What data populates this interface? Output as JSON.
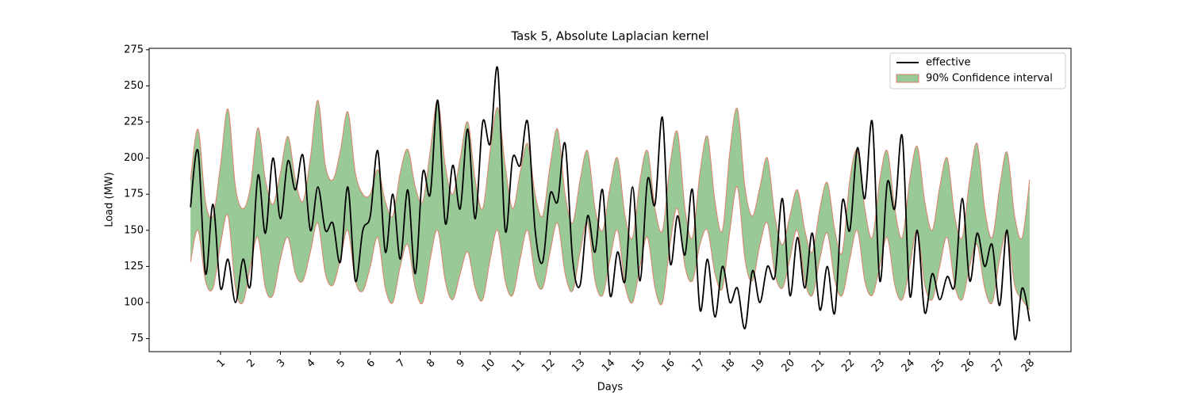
{
  "chart_data": {
    "type": "band-line",
    "title": "Task 5, Absolute Laplacian kernel",
    "xlabel": "Days",
    "ylabel": "Load (MW)",
    "xlim": [
      -1.38,
      29.38
    ],
    "ylim": [
      66,
      276
    ],
    "xticks": [
      1,
      2,
      3,
      4,
      5,
      6,
      7,
      8,
      9,
      10,
      11,
      12,
      13,
      14,
      15,
      16,
      17,
      18,
      19,
      20,
      21,
      22,
      23,
      24,
      25,
      26,
      27,
      28
    ],
    "yticks": [
      75,
      100,
      125,
      150,
      175,
      200,
      225,
      250,
      275
    ],
    "legend": "upper right",
    "x": [
      0,
      0.25,
      0.5,
      0.75,
      1,
      1.25,
      1.5,
      1.75,
      2,
      2.25,
      2.5,
      2.75,
      3,
      3.25,
      3.5,
      3.75,
      4,
      4.25,
      4.5,
      4.75,
      5,
      5.25,
      5.5,
      5.75,
      6,
      6.25,
      6.5,
      6.75,
      7,
      7.25,
      7.5,
      7.75,
      8,
      8.25,
      8.5,
      8.75,
      9,
      9.25,
      9.5,
      9.75,
      10,
      10.25,
      10.5,
      10.75,
      11,
      11.25,
      11.5,
      11.75,
      12,
      12.25,
      12.5,
      12.75,
      13,
      13.25,
      13.5,
      13.75,
      14,
      14.25,
      14.5,
      14.75,
      15,
      15.25,
      15.5,
      15.75,
      16,
      16.25,
      16.5,
      16.75,
      17,
      17.25,
      17.5,
      17.75,
      18,
      18.25,
      18.5,
      18.75,
      19,
      19.25,
      19.5,
      19.75,
      20,
      20.25,
      20.5,
      20.75,
      21,
      21.25,
      21.5,
      21.75,
      22,
      22.25,
      22.5,
      22.75,
      23,
      23.25,
      23.5,
      23.75,
      24,
      24.25,
      24.5,
      24.75,
      25,
      25.25,
      25.5,
      25.75,
      26,
      26.25,
      26.5,
      26.75,
      27,
      27.25,
      27.5,
      27.75,
      28
    ],
    "series": [
      {
        "name": "effective",
        "color": "#000000",
        "values": [
          166,
          205,
          120,
          168,
          110,
          130,
          100,
          130,
          112,
          188,
          148,
          200,
          158,
          198,
          178,
          202,
          150,
          180,
          150,
          155,
          128,
          180,
          115,
          150,
          160,
          205,
          135,
          175,
          130,
          178,
          120,
          190,
          175,
          240,
          155,
          195,
          165,
          220,
          158,
          225,
          210,
          262,
          150,
          200,
          195,
          225,
          150,
          128,
          175,
          170,
          210,
          130,
          112,
          160,
          135,
          178,
          105,
          135,
          115,
          180,
          115,
          185,
          168,
          228,
          128,
          160,
          133,
          178,
          95,
          130,
          90,
          125,
          100,
          110,
          82,
          122,
          100,
          125,
          118,
          172,
          105,
          145,
          110,
          148,
          95,
          125,
          93,
          170,
          150,
          207,
          172,
          225,
          115,
          183,
          165,
          215,
          105,
          150,
          93,
          120,
          102,
          118,
          112,
          172,
          115,
          148,
          125,
          140,
          98,
          150,
          75,
          110,
          87
        ]
      }
    ],
    "band": {
      "name": "90% Confidence interval",
      "color": "#98c997",
      "edgecolor": "#e0806c",
      "upper": [
        185,
        220,
        170,
        160,
        195,
        234,
        180,
        165,
        180,
        221,
        185,
        168,
        190,
        215,
        185,
        170,
        200,
        240,
        195,
        185,
        205,
        232,
        190,
        175,
        175,
        192,
        170,
        160,
        190,
        206,
        180,
        170,
        205,
        240,
        195,
        175,
        200,
        225,
        185,
        165,
        205,
        235,
        195,
        165,
        190,
        210,
        175,
        160,
        195,
        220,
        175,
        155,
        185,
        205,
        165,
        150,
        180,
        200,
        160,
        145,
        185,
        205,
        165,
        150,
        195,
        218,
        165,
        145,
        190,
        215,
        170,
        150,
        205,
        234,
        180,
        160,
        180,
        200,
        160,
        140,
        160,
        178,
        150,
        135,
        165,
        183,
        150,
        135,
        185,
        205,
        165,
        145,
        185,
        205,
        165,
        145,
        185,
        208,
        170,
        150,
        180,
        200,
        160,
        145,
        185,
        210,
        165,
        145,
        180,
        204,
        160,
        145,
        185
      ],
      "lower": [
        128,
        150,
        115,
        110,
        140,
        160,
        110,
        100,
        125,
        145,
        110,
        105,
        130,
        145,
        120,
        115,
        135,
        155,
        120,
        112,
        130,
        150,
        115,
        108,
        125,
        145,
        110,
        100,
        125,
        140,
        110,
        100,
        130,
        150,
        115,
        102,
        120,
        135,
        110,
        102,
        130,
        150,
        115,
        105,
        130,
        150,
        118,
        110,
        135,
        155,
        120,
        108,
        135,
        155,
        115,
        105,
        130,
        150,
        112,
        100,
        125,
        145,
        110,
        100,
        140,
        165,
        125,
        115,
        140,
        150,
        120,
        110,
        150,
        180,
        130,
        115,
        140,
        155,
        120,
        110,
        130,
        150,
        115,
        105,
        130,
        148,
        115,
        105,
        130,
        150,
        115,
        105,
        125,
        145,
        112,
        102,
        125,
        150,
        112,
        102,
        125,
        145,
        112,
        102,
        125,
        140,
        110,
        100,
        130,
        148,
        112,
        102,
        95
      ]
    }
  }
}
